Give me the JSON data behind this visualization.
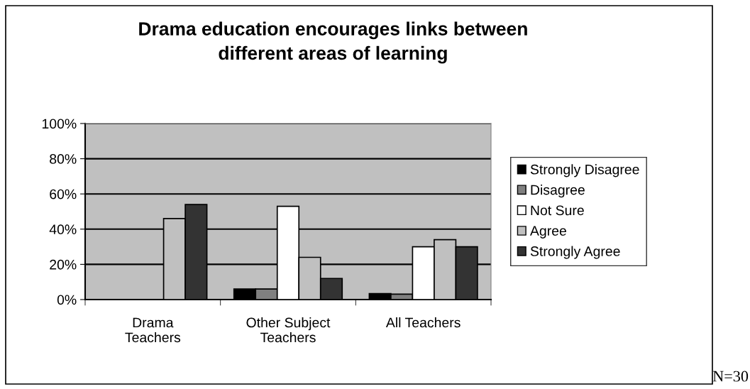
{
  "chart_data": {
    "type": "bar",
    "title": "Drama education encourages links between\ndifferent areas of learning",
    "categories": [
      "Drama\nTeachers",
      "Other Subject\nTeachers",
      "All Teachers"
    ],
    "series": [
      {
        "name": "Strongly Disagree",
        "color": "#000000",
        "values": [
          0,
          6,
          3.4
        ]
      },
      {
        "name": "Disagree",
        "color": "#808080",
        "values": [
          0,
          6,
          3.1
        ]
      },
      {
        "name": "Not Sure",
        "color": "#ffffff",
        "values": [
          0,
          53,
          30
        ]
      },
      {
        "name": "Agree",
        "color": "#c0c0c0",
        "values": [
          46,
          24,
          34
        ]
      },
      {
        "name": "Strongly Agree",
        "color": "#333333",
        "values": [
          54,
          12,
          30
        ]
      }
    ],
    "ylim": [
      0,
      100
    ],
    "yticks": [
      {
        "value": 0,
        "label": "0%"
      },
      {
        "value": 20,
        "label": "20%"
      },
      {
        "value": 40,
        "label": "40%"
      },
      {
        "value": 60,
        "label": "60%"
      },
      {
        "value": 80,
        "label": "80%"
      },
      {
        "value": 100,
        "label": "100%"
      }
    ],
    "grid": "y",
    "legend": "right",
    "annotations": [
      "N=30"
    ]
  }
}
